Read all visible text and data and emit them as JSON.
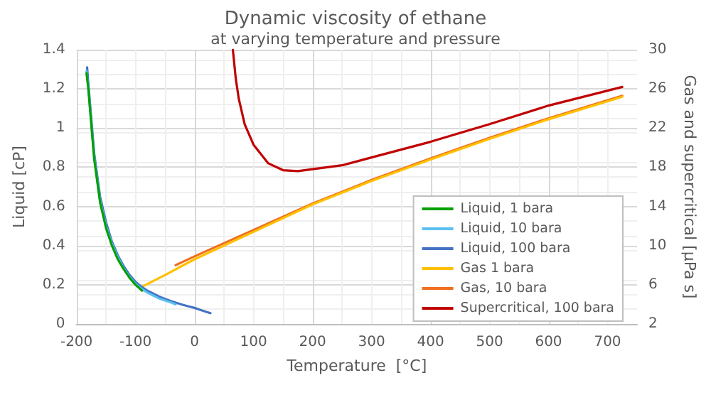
{
  "chart_data": {
    "type": "line",
    "title": "Dynamic viscosity of ethane",
    "subtitle": "at varying temperature and pressure",
    "xlabel": "Temperature  [°C]",
    "ylabel": "Liquid [cP]",
    "y2label": "Gas and supercritical [μPa s]",
    "xlim": [
      -200,
      750
    ],
    "xticks": [
      -200,
      -100,
      0,
      100,
      200,
      300,
      400,
      500,
      600,
      700
    ],
    "ylim": [
      0,
      1.4
    ],
    "yticks": [
      0,
      0.2,
      0.4,
      0.6,
      0.8,
      1,
      1.2,
      1.4
    ],
    "y2lim": [
      2,
      30
    ],
    "y2ticks": [
      2,
      6,
      10,
      14,
      18,
      22,
      26,
      30
    ],
    "grid": true,
    "legend": "bottom right",
    "marker": "none",
    "line_style": "solid",
    "series": [
      {
        "name": "Liquid, 1 bara",
        "color": "#00a000",
        "x": [
          -183,
          -180,
          -170,
          -160,
          -150,
          -140,
          -130,
          -120,
          -110,
          -100,
          -89
        ],
        "values": [
          1.28,
          1.2,
          0.84,
          0.62,
          0.49,
          0.4,
          0.33,
          0.28,
          0.235,
          0.2,
          0.17
        ]
      },
      {
        "name": "Liquid, 10 bara",
        "color": "#5bc0f0",
        "x": [
          -183,
          -180,
          -170,
          -160,
          -150,
          -140,
          -130,
          -120,
          -110,
          -100,
          -90,
          -80,
          -70,
          -60,
          -50,
          -40,
          -32
        ],
        "values": [
          1.29,
          1.21,
          0.85,
          0.63,
          0.5,
          0.41,
          0.34,
          0.285,
          0.24,
          0.205,
          0.18,
          0.16,
          0.145,
          0.13,
          0.12,
          0.11,
          0.1
        ]
      },
      {
        "name": "Liquid, 100 bara",
        "color": "#4472c4",
        "x": [
          -182,
          -180,
          -170,
          -160,
          -150,
          -140,
          -130,
          -120,
          -110,
          -100,
          -90,
          -80,
          -70,
          -60,
          -50,
          -40,
          -30,
          -20,
          -10,
          0,
          10,
          20,
          27
        ],
        "values": [
          1.31,
          1.23,
          0.87,
          0.65,
          0.52,
          0.42,
          0.35,
          0.295,
          0.25,
          0.215,
          0.19,
          0.17,
          0.155,
          0.14,
          0.128,
          0.117,
          0.107,
          0.098,
          0.09,
          0.082,
          0.072,
          0.062,
          0.055
        ]
      },
      {
        "name": "Gas 1 bara",
        "color": "#ffc000",
        "axis": "y2",
        "x": [
          -89,
          -50,
          0,
          100,
          200,
          300,
          400,
          500,
          600,
          725
        ],
        "values": [
          5.8,
          7.0,
          8.6,
          11.4,
          14.2,
          16.6,
          18.8,
          20.9,
          22.9,
          25.2
        ]
      },
      {
        "name": "Gas, 10 bara",
        "color": "#f07020",
        "axis": "y2",
        "x": [
          -32,
          0,
          100,
          200,
          300,
          400,
          500,
          600,
          725
        ],
        "values": [
          8.0,
          8.9,
          11.6,
          14.3,
          16.7,
          18.9,
          21.0,
          23.0,
          25.3
        ]
      },
      {
        "name": "Supercritical, 100 bara",
        "color": "#c00000",
        "axis": "y2",
        "x": [
          65,
          70,
          75,
          85,
          100,
          125,
          150,
          175,
          200,
          250,
          300,
          400,
          500,
          600,
          725
        ],
        "values": [
          30,
          27,
          25,
          22.4,
          20.3,
          18.4,
          17.7,
          17.6,
          17.8,
          18.2,
          19.0,
          20.6,
          22.4,
          24.3,
          26.2
        ]
      }
    ]
  }
}
